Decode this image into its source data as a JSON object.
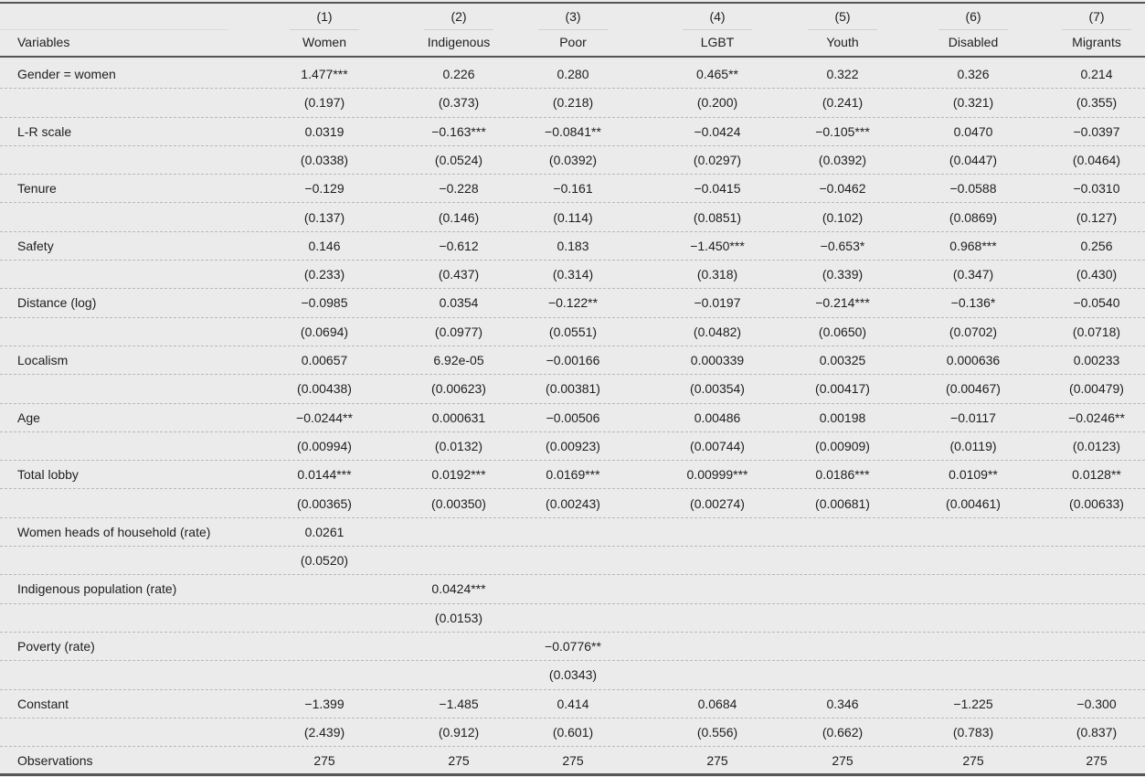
{
  "table": {
    "header_label": "Variables",
    "columns": [
      {
        "num": "(1)",
        "label": "Women"
      },
      {
        "num": "(2)",
        "label": "Indigenous"
      },
      {
        "num": "(3)",
        "label": "Poor"
      },
      {
        "num": "(4)",
        "label": "LGBT"
      },
      {
        "num": "(5)",
        "label": "Youth"
      },
      {
        "num": "(6)",
        "label": "Disabled"
      },
      {
        "num": "(7)",
        "label": "Migrants"
      }
    ],
    "rows": [
      {
        "label": "Gender = women",
        "coef": [
          "1.477***",
          "0.226",
          "0.280",
          "0.465**",
          "0.322",
          "0.326",
          "0.214"
        ],
        "se": [
          "(0.197)",
          "(0.373)",
          "(0.218)",
          "(0.200)",
          "(0.241)",
          "(0.321)",
          "(0.355)"
        ]
      },
      {
        "label": "L-R scale",
        "coef": [
          "0.0319",
          "−0.163***",
          "−0.0841**",
          "−0.0424",
          "−0.105***",
          "0.0470",
          "−0.0397"
        ],
        "se": [
          "(0.0338)",
          "(0.0524)",
          "(0.0392)",
          "(0.0297)",
          "(0.0392)",
          "(0.0447)",
          "(0.0464)"
        ]
      },
      {
        "label": "Tenure",
        "coef": [
          "−0.129",
          "−0.228",
          "−0.161",
          "−0.0415",
          "−0.0462",
          "−0.0588",
          "−0.0310"
        ],
        "se": [
          "(0.137)",
          "(0.146)",
          "(0.114)",
          "(0.0851)",
          "(0.102)",
          "(0.0869)",
          "(0.127)"
        ]
      },
      {
        "label": "Safety",
        "coef": [
          "0.146",
          "−0.612",
          "0.183",
          "−1.450***",
          "−0.653*",
          "0.968***",
          "0.256"
        ],
        "se": [
          "(0.233)",
          "(0.437)",
          "(0.314)",
          "(0.318)",
          "(0.339)",
          "(0.347)",
          "(0.430)"
        ]
      },
      {
        "label": "Distance (log)",
        "coef": [
          "−0.0985",
          "0.0354",
          "−0.122**",
          "−0.0197",
          "−0.214***",
          "−0.136*",
          "−0.0540"
        ],
        "se": [
          "(0.0694)",
          "(0.0977)",
          "(0.0551)",
          "(0.0482)",
          "(0.0650)",
          "(0.0702)",
          "(0.0718)"
        ]
      },
      {
        "label": "Localism",
        "coef": [
          "0.00657",
          "6.92e-05",
          "−0.00166",
          "0.000339",
          "0.00325",
          "0.000636",
          "0.00233"
        ],
        "se": [
          "(0.00438)",
          "(0.00623)",
          "(0.00381)",
          "(0.00354)",
          "(0.00417)",
          "(0.00467)",
          "(0.00479)"
        ]
      },
      {
        "label": "Age",
        "coef": [
          "−0.0244**",
          "0.000631",
          "−0.00506",
          "0.00486",
          "0.00198",
          "−0.0117",
          "−0.0246**"
        ],
        "se": [
          "(0.00994)",
          "(0.0132)",
          "(0.00923)",
          "(0.00744)",
          "(0.00909)",
          "(0.0119)",
          "(0.0123)"
        ]
      },
      {
        "label": "Total lobby",
        "coef": [
          "0.0144***",
          "0.0192***",
          "0.0169***",
          "0.00999***",
          "0.0186***",
          "0.0109**",
          "0.0128**"
        ],
        "se": [
          "(0.00365)",
          "(0.00350)",
          "(0.00243)",
          "(0.00274)",
          "(0.00681)",
          "(0.00461)",
          "(0.00633)"
        ]
      },
      {
        "label": "Women heads of household (rate)",
        "coef": [
          "0.0261",
          "",
          "",
          "",
          "",
          "",
          ""
        ],
        "se": [
          "(0.0520)",
          "",
          "",
          "",
          "",
          "",
          ""
        ]
      },
      {
        "label": "Indigenous population (rate)",
        "coef": [
          "",
          "0.0424***",
          "",
          "",
          "",
          "",
          ""
        ],
        "se": [
          "",
          "(0.0153)",
          "",
          "",
          "",
          "",
          ""
        ]
      },
      {
        "label": "Poverty (rate)",
        "coef": [
          "",
          "",
          "−0.0776**",
          "",
          "",
          "",
          ""
        ],
        "se": [
          "",
          "",
          "(0.0343)",
          "",
          "",
          "",
          ""
        ]
      },
      {
        "label": "Constant",
        "coef": [
          "−1.399",
          "−1.485",
          "0.414",
          "0.0684",
          "0.346",
          "−1.225",
          "−0.300"
        ],
        "se": [
          "(2.439)",
          "(0.912)",
          "(0.601)",
          "(0.556)",
          "(0.662)",
          "(0.783)",
          "(0.837)"
        ]
      }
    ],
    "observations": {
      "label": "Observations",
      "values": [
        "275",
        "275",
        "275",
        "275",
        "275",
        "275",
        "275"
      ]
    }
  }
}
